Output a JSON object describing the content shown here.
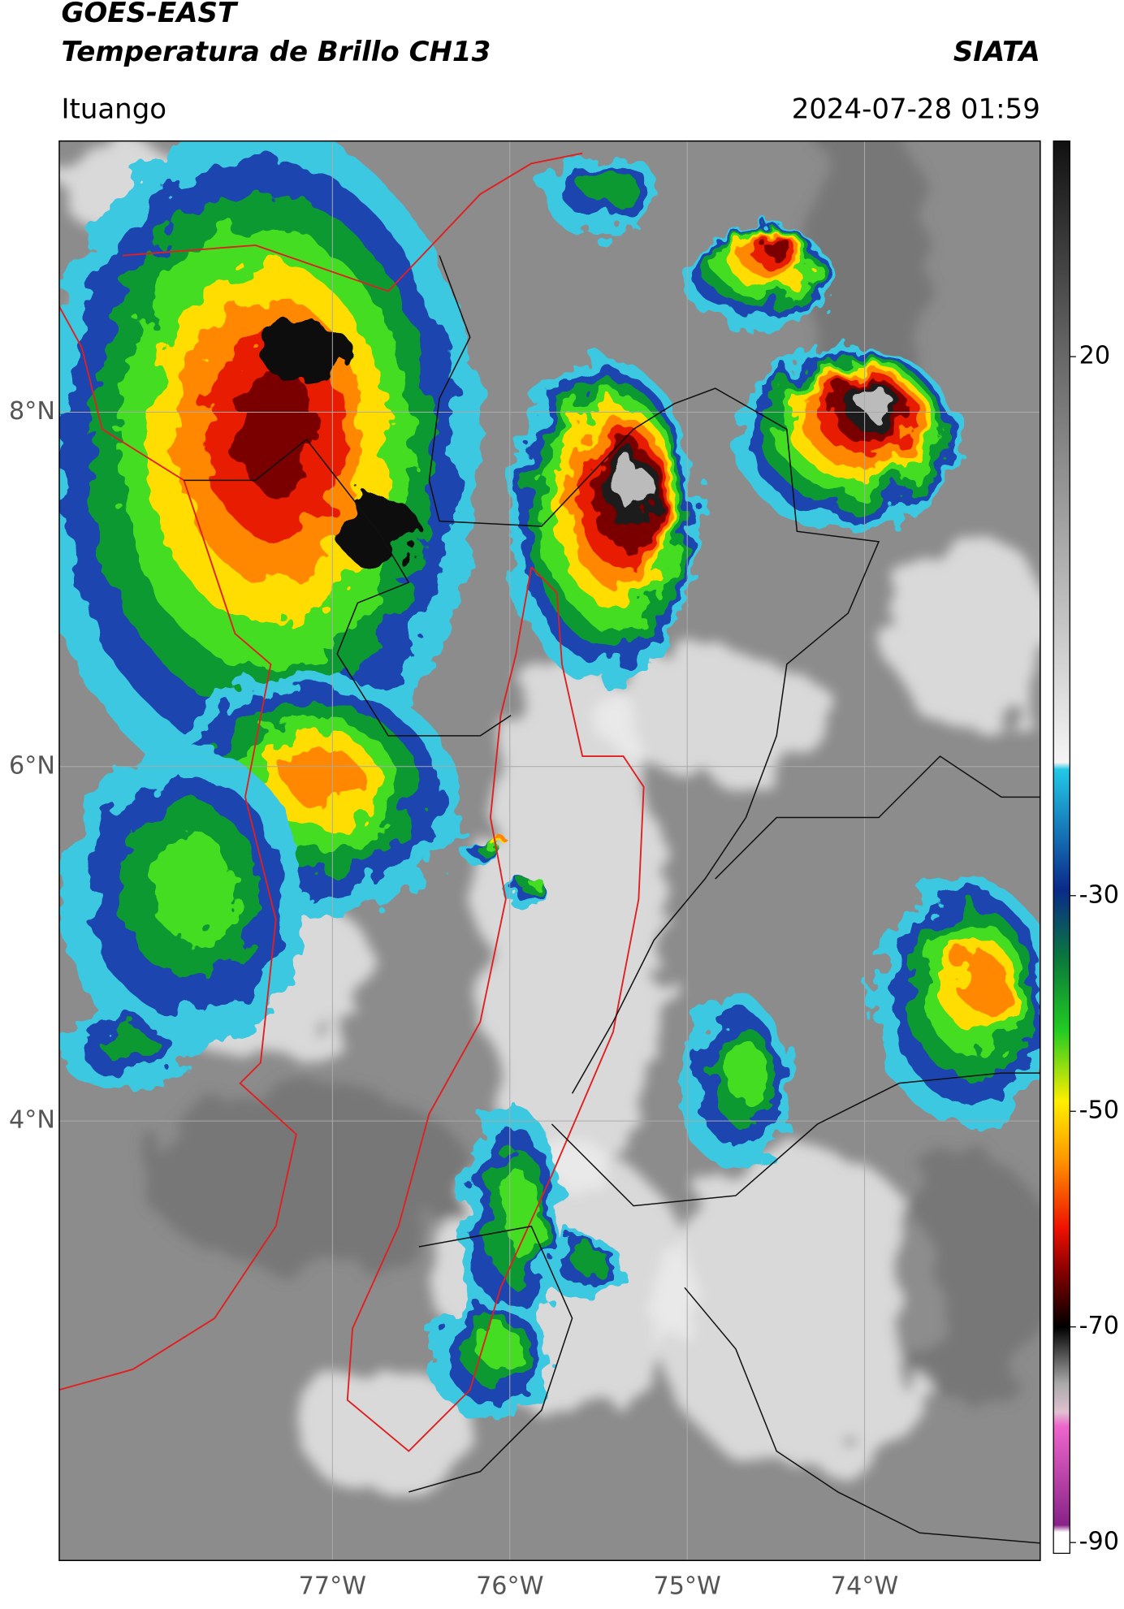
{
  "map": {
    "title": "GOES-EAST",
    "subtitle": "Temperatura de Brillo CH13",
    "agency": "SIATA",
    "location": "Ituango",
    "timestamp": "2024-07-28 01:59",
    "lon_range": [
      -78.54,
      -73.01
    ],
    "lat_range": [
      1.52,
      9.53
    ],
    "lat_ticks": [
      {
        "value": 8,
        "label": "8°N"
      },
      {
        "value": 6,
        "label": "6°N"
      },
      {
        "value": 4,
        "label": "4°N"
      }
    ],
    "lon_ticks": [
      {
        "value": -77,
        "label": "77°W"
      },
      {
        "value": -76,
        "label": "76°W"
      },
      {
        "value": -75,
        "label": "75°W"
      },
      {
        "value": -74,
        "label": "74°W"
      }
    ],
    "colorbar": {
      "range": [
        -91,
        40
      ],
      "ticks": [
        20,
        -30,
        -50,
        -70,
        -90
      ]
    }
  }
}
